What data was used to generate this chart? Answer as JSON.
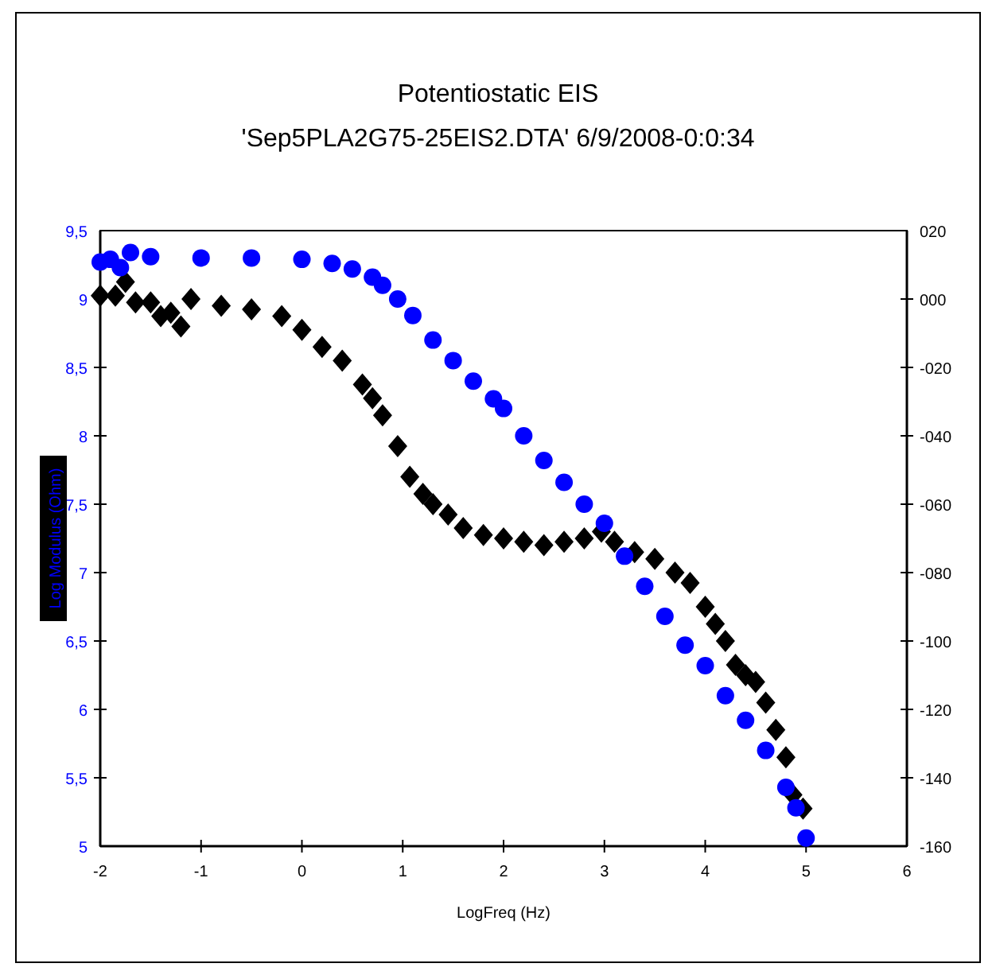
{
  "chart_data": {
    "type": "scatter",
    "title": "Potentiostatic EIS",
    "subtitle": "'Sep5PLA2G75-25EIS2.DTA' 6/9/2008-0:0:34",
    "xlabel": "LogFreq (Hz)",
    "ylabel": "Log Modulus (Ohm)",
    "xlim": [
      -2,
      6
    ],
    "xticks": [
      -2,
      -1,
      0,
      1,
      2,
      3,
      4,
      5,
      6
    ],
    "ylim": [
      5,
      9.5
    ],
    "yticks": [
      5,
      {
        "value": 5.5,
        "label": "5,5"
      },
      6,
      {
        "value": 6.5,
        "label": "6,5"
      },
      7,
      {
        "value": 7.5,
        "label": "7,5"
      },
      8,
      {
        "value": 8.5,
        "label": "8,5"
      },
      9,
      {
        "value": 9.5,
        "label": "9,5"
      }
    ],
    "y2lim": [
      -160,
      20
    ],
    "y2ticks": [
      -160,
      -140,
      -120,
      -100,
      {
        "value": -80,
        "label": "-080"
      },
      {
        "value": -60,
        "label": "-060"
      },
      {
        "value": -40,
        "label": "-040"
      },
      {
        "value": -20,
        "label": "-020"
      },
      {
        "value": 0,
        "label": "000"
      },
      {
        "value": 20,
        "label": "020"
      }
    ],
    "grid": false,
    "series": [
      {
        "color": "#0000ff",
        "marker": "circle",
        "x": [
          -2,
          -1.9,
          -1.8,
          -1.7,
          -1.5,
          -1,
          -0.5,
          0,
          0.3,
          0.5,
          0.7,
          0.8,
          0.95,
          1.1,
          1.3,
          1.5,
          1.7,
          1.9,
          2.0,
          2.2,
          2.4,
          2.6,
          2.8,
          3.0,
          3.2,
          3.4,
          3.6,
          3.8,
          4.0,
          4.2,
          4.4,
          4.6,
          4.8,
          4.9,
          5.0
        ],
        "values": [
          9.27,
          9.29,
          9.23,
          9.34,
          9.31,
          9.3,
          9.3,
          9.29,
          9.26,
          9.22,
          9.16,
          9.1,
          9.0,
          8.88,
          8.7,
          8.55,
          8.4,
          8.27,
          8.2,
          8.0,
          7.82,
          7.66,
          7.5,
          7.36,
          7.12,
          6.9,
          6.68,
          6.47,
          6.32,
          6.1,
          5.92,
          5.7,
          5.43,
          5.28,
          5.06
        ]
      },
      {
        "color": "#000000",
        "marker": "diamond",
        "axis": "y2",
        "x": [
          -2,
          -1.85,
          -1.75,
          -1.65,
          -1.5,
          -1.4,
          -1.3,
          -1.2,
          -1.1,
          -0.8,
          -0.5,
          -0.2,
          0,
          0.2,
          0.4,
          0.6,
          0.7,
          0.8,
          0.95,
          1.07,
          1.2,
          1.3,
          1.45,
          1.6,
          1.8,
          2.0,
          2.2,
          2.4,
          2.6,
          2.8,
          2.97,
          3.1,
          3.3,
          3.5,
          3.7,
          3.85,
          4.0,
          4.1,
          4.2,
          4.3,
          4.4,
          4.5,
          4.6,
          4.7,
          4.8,
          4.87,
          4.97
        ],
        "values": [
          1,
          1,
          5,
          -1,
          -1,
          -5,
          -4,
          -8,
          0,
          -2,
          -3,
          -5,
          -9,
          -14,
          -18,
          -25,
          -29,
          -34,
          -43,
          -52,
          -57,
          -60,
          -63,
          -67,
          -69,
          -70,
          -71,
          -72,
          -71,
          -70,
          -68,
          -71,
          -74,
          -76,
          -80,
          -83,
          -90,
          -95,
          -100,
          -107,
          -110,
          -112,
          -118,
          -126,
          -134,
          -145,
          -149
        ]
      }
    ]
  }
}
